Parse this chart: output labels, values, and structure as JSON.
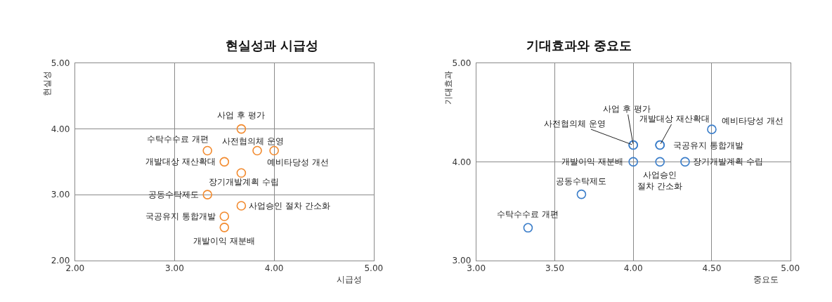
{
  "chart_data": [
    {
      "type": "scatter",
      "title": "현실성과 시급성",
      "xlabel": "시급성",
      "ylabel": "현실성",
      "xlim": [
        2,
        5
      ],
      "ylim": [
        2,
        5
      ],
      "xticks": [
        {
          "value": 2,
          "label": "2.00"
        },
        {
          "value": 3,
          "label": "3.00"
        },
        {
          "value": 4,
          "label": "4.00"
        },
        {
          "value": 5,
          "label": "5.00"
        }
      ],
      "yticks": [
        {
          "value": 2,
          "label": "2.00"
        },
        {
          "value": 3,
          "label": "3.00"
        },
        {
          "value": 4,
          "label": "4.00"
        },
        {
          "value": 5,
          "label": "5.00"
        }
      ],
      "grid": true,
      "marker": "circle",
      "series": [
        {
          "name": "사업 후 평가",
          "color": "#f28a2e",
          "x": [
            3.67
          ],
          "values": [
            4.0
          ]
        },
        {
          "name": "수탁수수료 개편",
          "color": "#f28a2e",
          "x": [
            3.33
          ],
          "values": [
            3.67
          ]
        },
        {
          "name": "사전협의체 운영",
          "color": "#f28a2e",
          "x": [
            3.83
          ],
          "values": [
            3.67
          ]
        },
        {
          "name": "예비타당성 개선",
          "color": "#f28a2e",
          "x": [
            4.0
          ],
          "values": [
            3.67
          ]
        },
        {
          "name": "개발대상 재산확대",
          "color": "#f28a2e",
          "x": [
            3.5
          ],
          "values": [
            3.5
          ]
        },
        {
          "name": "장기개발계획 수립",
          "color": "#f28a2e",
          "x": [
            3.67
          ],
          "values": [
            3.33
          ]
        },
        {
          "name": "공동수탁제도",
          "color": "#f28a2e",
          "x": [
            3.33
          ],
          "values": [
            3.0
          ]
        },
        {
          "name": "사업승인 절차 간소화",
          "color": "#f28a2e",
          "x": [
            3.67
          ],
          "values": [
            2.83
          ]
        },
        {
          "name": "국공유지 통합개발",
          "color": "#f28a2e",
          "x": [
            3.5
          ],
          "values": [
            2.67
          ]
        },
        {
          "name": "개발이익 재분배",
          "color": "#f28a2e",
          "x": [
            3.5
          ],
          "values": [
            2.5
          ]
        }
      ]
    },
    {
      "type": "scatter",
      "title": "기대효과와 중요도",
      "xlabel": "중요도",
      "ylabel": "기대효과",
      "xlim": [
        3,
        5
      ],
      "ylim": [
        3,
        5
      ],
      "xticks": [
        {
          "value": 3,
          "label": "3.00"
        },
        {
          "value": 3.5,
          "label": "3.50"
        },
        {
          "value": 4,
          "label": "4.00"
        },
        {
          "value": 4.5,
          "label": "4.50"
        },
        {
          "value": 5,
          "label": "5.00"
        }
      ],
      "yticks": [
        {
          "value": 3,
          "label": "3.00"
        },
        {
          "value": 4,
          "label": "4.00"
        },
        {
          "value": 5,
          "label": "5.00"
        }
      ],
      "grid": true,
      "marker": "circle",
      "series": [
        {
          "name": "예비타당성 개선",
          "color": "#3a7dc9",
          "x": [
            4.5
          ],
          "values": [
            4.33
          ]
        },
        {
          "name": "사업 후 평가",
          "color": "#3a7dc9",
          "x": [
            4.0
          ],
          "values": [
            4.17
          ]
        },
        {
          "name": "사전협의체 운영",
          "color": "#3a7dc9",
          "x": [
            4.0
          ],
          "values": [
            4.17
          ]
        },
        {
          "name": "개발대상 재산확대",
          "color": "#3a7dc9",
          "x": [
            4.17
          ],
          "values": [
            4.17
          ]
        },
        {
          "name": "국공유지 통합개발",
          "color": "#3a7dc9",
          "x": [
            4.17
          ],
          "values": [
            4.17
          ]
        },
        {
          "name": "개발이익 재분배",
          "color": "#3a7dc9",
          "x": [
            4.0
          ],
          "values": [
            4.0
          ]
        },
        {
          "name": "사업승인\n절차 간소화",
          "color": "#3a7dc9",
          "x": [
            4.17
          ],
          "values": [
            4.0
          ]
        },
        {
          "name": "장기개발계획 수립",
          "color": "#3a7dc9",
          "x": [
            4.33
          ],
          "values": [
            4.0
          ]
        },
        {
          "name": "공동수탁제도",
          "color": "#3a7dc9",
          "x": [
            3.67
          ],
          "values": [
            3.67
          ]
        },
        {
          "name": "수탁수수료 개편",
          "color": "#3a7dc9",
          "x": [
            3.33
          ],
          "values": [
            3.33
          ]
        }
      ]
    }
  ]
}
